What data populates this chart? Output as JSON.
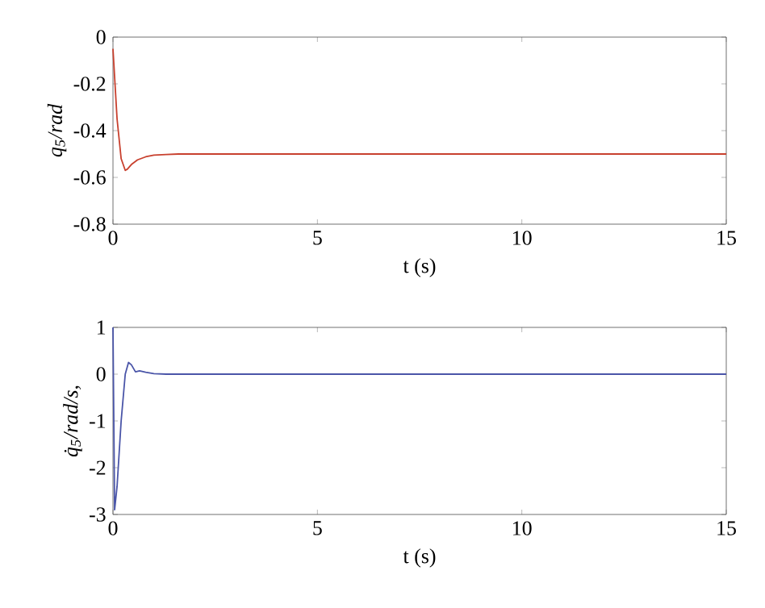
{
  "chart_data": [
    {
      "type": "line",
      "xlabel": "t (s)",
      "ylabel": "q$_{5}$/rad",
      "color": "#c8402e",
      "xlim": [
        0,
        15
      ],
      "ylim": [
        -0.8,
        0
      ],
      "xticks": [
        0,
        5,
        10,
        15
      ],
      "yticks": [
        -0.8,
        -0.6,
        -0.4,
        -0.2,
        0
      ],
      "x": [
        0,
        0.05,
        0.1,
        0.2,
        0.3,
        0.35,
        0.45,
        0.6,
        0.8,
        1.0,
        1.3,
        1.6,
        2,
        3,
        15
      ],
      "values": [
        -0.05,
        -0.2,
        -0.35,
        -0.52,
        -0.57,
        -0.565,
        -0.545,
        -0.525,
        -0.512,
        -0.505,
        -0.502,
        -0.5,
        -0.5,
        -0.5,
        -0.5
      ]
    },
    {
      "type": "line",
      "xlabel": "t (s)",
      "ylabel": "q̇$_{5}$/rad/s,",
      "color": "#4a55a8",
      "xlim": [
        0,
        15
      ],
      "ylim": [
        -3,
        1
      ],
      "xticks": [
        0,
        5,
        10,
        15
      ],
      "yticks": [
        -3,
        -2,
        -1,
        0,
        1
      ],
      "x": [
        0,
        0.04,
        0.1,
        0.2,
        0.3,
        0.38,
        0.45,
        0.55,
        0.65,
        0.8,
        1.0,
        1.3,
        15
      ],
      "values": [
        1,
        -2.9,
        -2.4,
        -1.0,
        0.0,
        0.25,
        0.2,
        0.05,
        0.07,
        0.04,
        0.01,
        0,
        0
      ]
    }
  ]
}
